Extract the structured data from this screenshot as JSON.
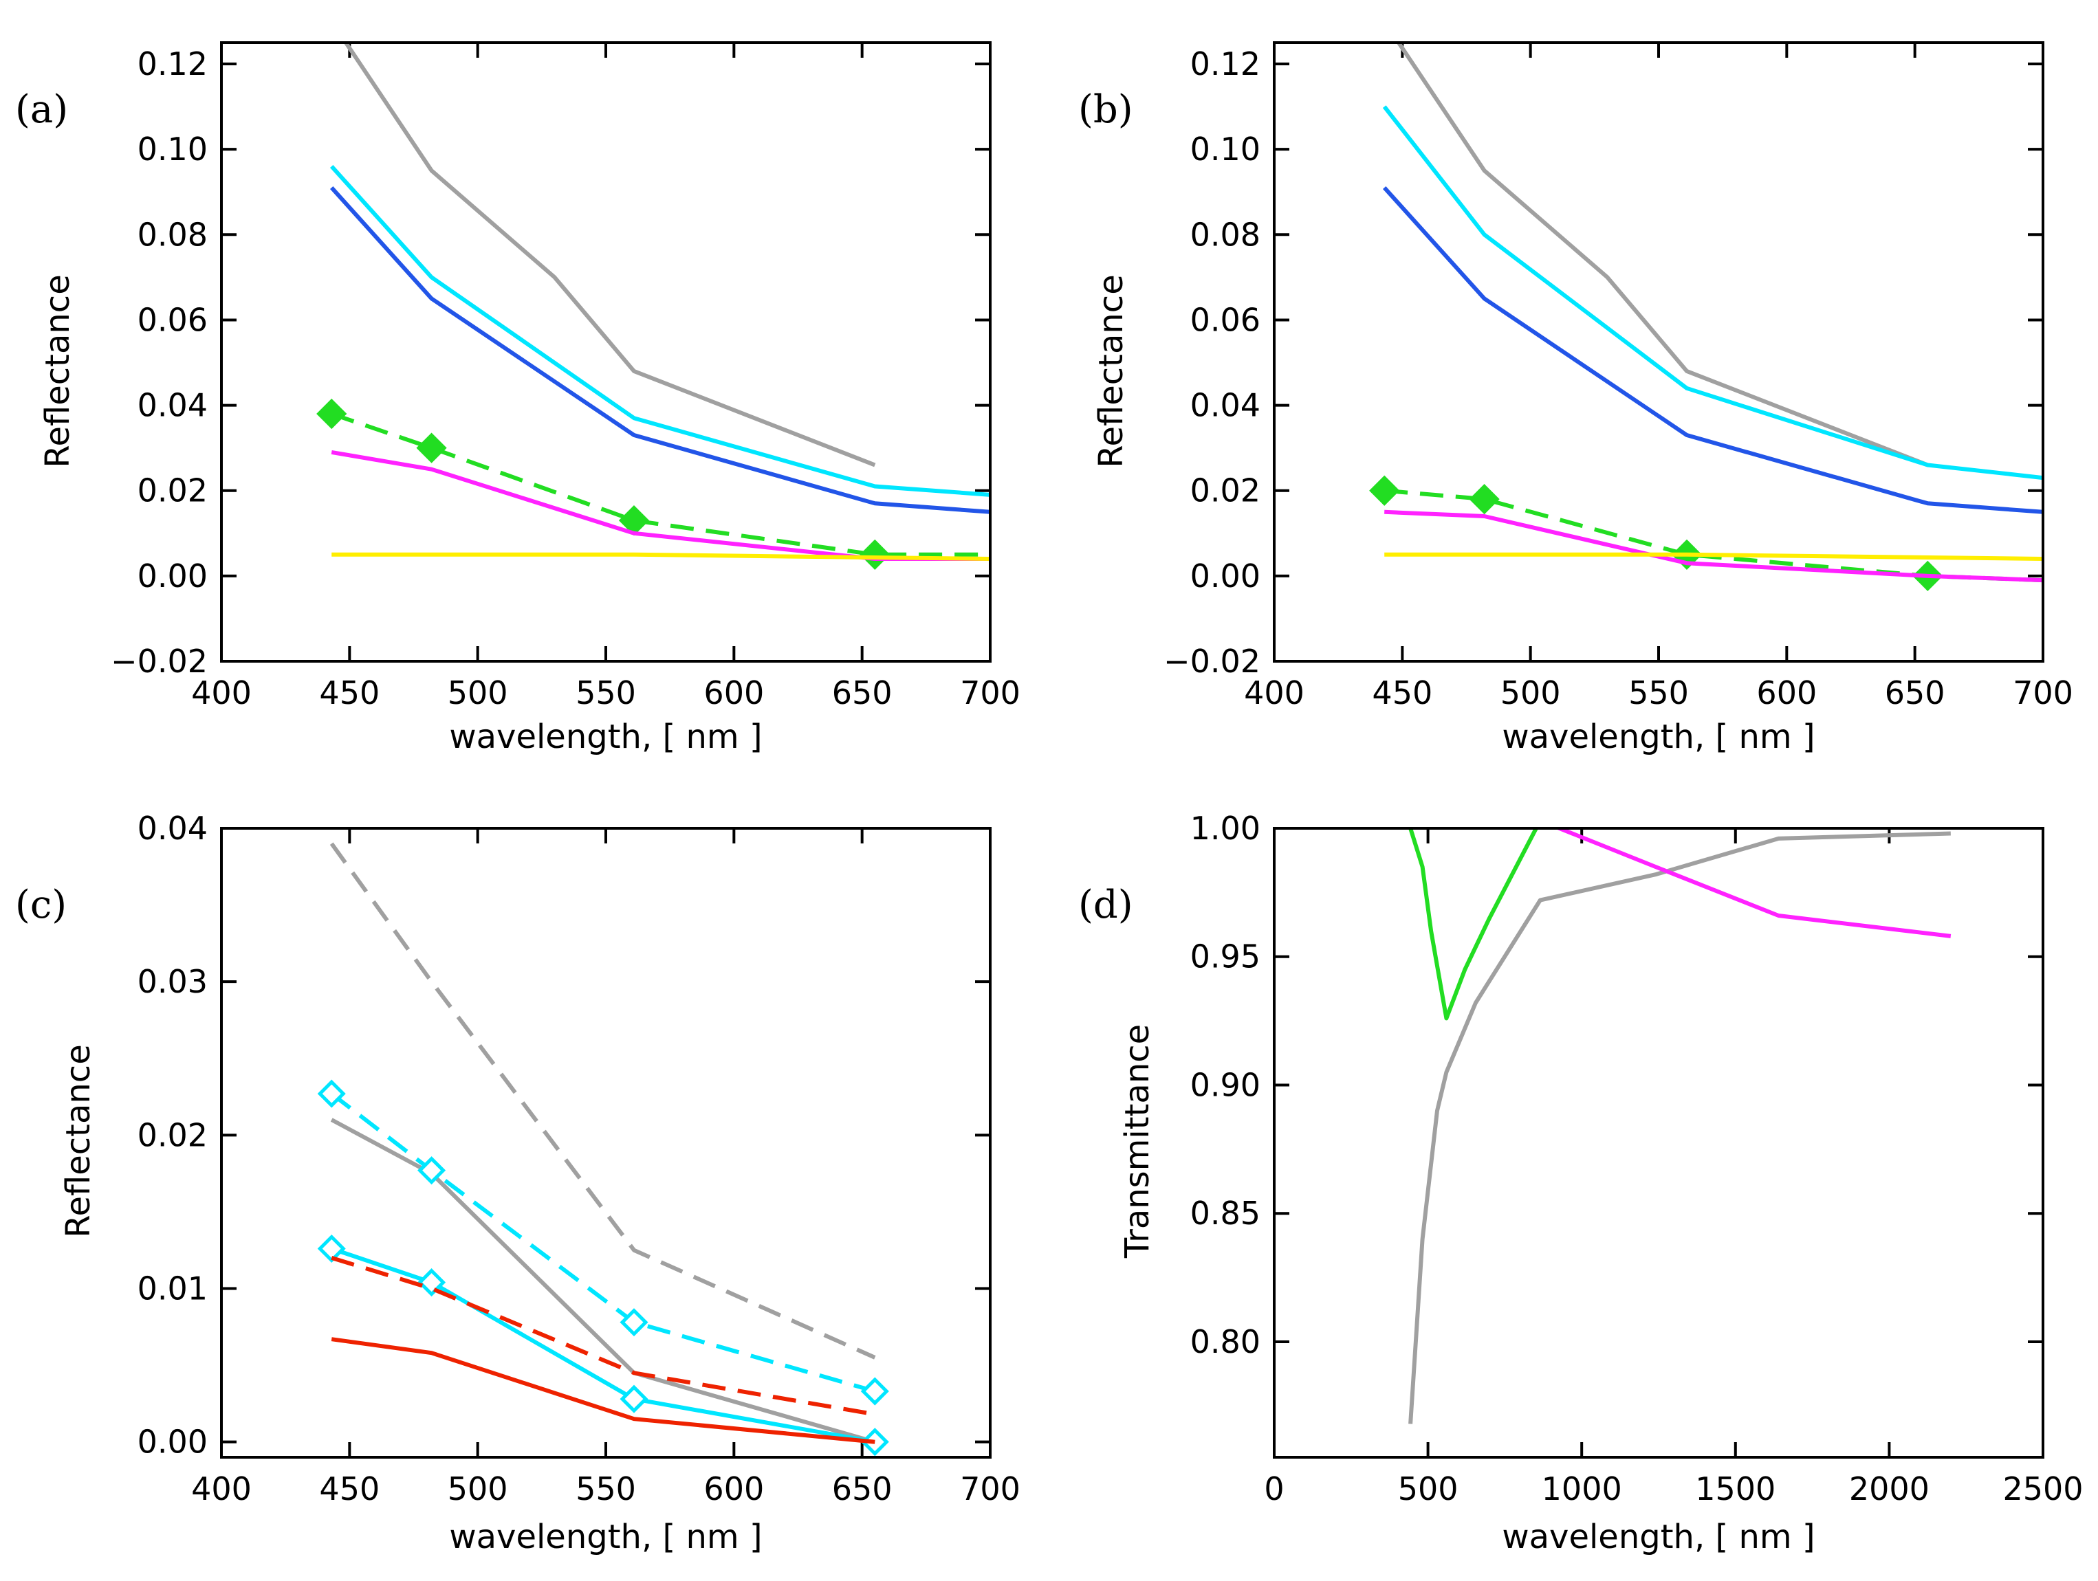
{
  "figure": {
    "panel_letters": [
      "(a)",
      "(b)",
      "(c)",
      "(d)"
    ]
  },
  "chart_data": [
    {
      "type": "line",
      "panel": "(a)",
      "xlabel": "wavelength, [ nm ]",
      "ylabel": "Reflectance",
      "xlim": [
        400,
        700
      ],
      "ylim": [
        -0.02,
        0.125
      ],
      "xticks": [
        400,
        450,
        500,
        550,
        600,
        650,
        700
      ],
      "xtick_labels": [
        "400",
        "450",
        "500",
        "550",
        "600",
        "650",
        "700"
      ],
      "yticks": [
        -0.02,
        0,
        0.02,
        0.04,
        0.06,
        0.08,
        0.1,
        0.12
      ],
      "ytick_labels": [
        "−0.02",
        "0.00",
        "0.02",
        "0.04",
        "0.06",
        "0.08",
        "0.10",
        "0.12"
      ],
      "grid": false,
      "series": [
        {
          "name": "gray",
          "color": "#a0a0a0",
          "dash": false,
          "markers": false,
          "x": [
            443,
            482,
            530,
            561,
            655
          ],
          "y": [
            0.13,
            0.095,
            0.07,
            0.048,
            0.026
          ]
        },
        {
          "name": "cyan",
          "color": "#00e6ff",
          "dash": false,
          "markers": false,
          "x": [
            443,
            482,
            561,
            655,
            700
          ],
          "y": [
            0.096,
            0.07,
            0.037,
            0.021,
            0.019
          ]
        },
        {
          "name": "blue",
          "color": "#2255e8",
          "dash": false,
          "markers": false,
          "x": [
            443,
            482,
            561,
            655,
            700
          ],
          "y": [
            0.091,
            0.065,
            0.033,
            0.017,
            0.015
          ]
        },
        {
          "name": "green",
          "color": "#22dd22",
          "dash": true,
          "markers": "filled-diamond",
          "x": [
            443,
            482,
            561,
            655,
            700
          ],
          "y": [
            0.038,
            0.03,
            0.013,
            0.005,
            0.005
          ]
        },
        {
          "name": "magenta",
          "color": "#ff22ff",
          "dash": false,
          "markers": false,
          "x": [
            443,
            482,
            561,
            655,
            700
          ],
          "y": [
            0.029,
            0.025,
            0.01,
            0.004,
            0.004
          ]
        },
        {
          "name": "yellow",
          "color": "#ffee00",
          "dash": false,
          "markers": false,
          "x": [
            443,
            561,
            700
          ],
          "y": [
            0.005,
            0.005,
            0.004
          ]
        }
      ]
    },
    {
      "type": "line",
      "panel": "(b)",
      "xlabel": "wavelength, [ nm ]",
      "ylabel": "Reflectance",
      "xlim": [
        400,
        700
      ],
      "ylim": [
        -0.02,
        0.125
      ],
      "xticks": [
        400,
        450,
        500,
        550,
        600,
        650,
        700
      ],
      "xtick_labels": [
        "400",
        "450",
        "500",
        "550",
        "600",
        "650",
        "700"
      ],
      "yticks": [
        -0.02,
        0,
        0.02,
        0.04,
        0.06,
        0.08,
        0.1,
        0.12
      ],
      "ytick_labels": [
        "−0.02",
        "0.00",
        "0.02",
        "0.04",
        "0.06",
        "0.08",
        "0.10",
        "0.12"
      ],
      "grid": false,
      "series": [
        {
          "name": "gray",
          "color": "#a0a0a0",
          "dash": false,
          "markers": false,
          "x": [
            443,
            482,
            530,
            561,
            655
          ],
          "y": [
            0.13,
            0.095,
            0.07,
            0.048,
            0.026
          ]
        },
        {
          "name": "cyan",
          "color": "#00e6ff",
          "dash": false,
          "markers": false,
          "x": [
            443,
            482,
            561,
            655,
            700
          ],
          "y": [
            0.11,
            0.08,
            0.044,
            0.026,
            0.023
          ]
        },
        {
          "name": "blue",
          "color": "#2255e8",
          "dash": false,
          "markers": false,
          "x": [
            443,
            482,
            561,
            655,
            700
          ],
          "y": [
            0.091,
            0.065,
            0.033,
            0.017,
            0.015
          ]
        },
        {
          "name": "green",
          "color": "#22dd22",
          "dash": true,
          "markers": "filled-diamond",
          "x": [
            443,
            482,
            561,
            655,
            700
          ],
          "y": [
            0.02,
            0.018,
            0.005,
            0.0,
            -0.001
          ]
        },
        {
          "name": "magenta",
          "color": "#ff22ff",
          "dash": false,
          "markers": false,
          "x": [
            443,
            482,
            561,
            655,
            700
          ],
          "y": [
            0.015,
            0.014,
            0.003,
            0.0,
            -0.001
          ]
        },
        {
          "name": "yellow",
          "color": "#ffee00",
          "dash": false,
          "markers": false,
          "x": [
            443,
            561,
            700
          ],
          "y": [
            0.005,
            0.005,
            0.004
          ]
        }
      ]
    },
    {
      "type": "line",
      "panel": "(c)",
      "xlabel": "wavelength, [ nm ]",
      "ylabel": "Reflectance",
      "xlim": [
        400,
        700
      ],
      "ylim": [
        -0.001,
        0.04
      ],
      "xticks": [
        400,
        450,
        500,
        550,
        600,
        650,
        700
      ],
      "xtick_labels": [
        "400",
        "450",
        "500",
        "550",
        "600",
        "650",
        "700"
      ],
      "yticks": [
        0,
        0.01,
        0.02,
        0.03,
        0.04
      ],
      "ytick_labels": [
        "0.00",
        "0.01",
        "0.02",
        "0.03",
        "0.04"
      ],
      "grid": false,
      "series": [
        {
          "name": "gray dashed",
          "color": "#a0a0a0",
          "dash": true,
          "markers": false,
          "x": [
            443,
            482,
            561,
            655
          ],
          "y": [
            0.039,
            0.03,
            0.0125,
            0.0055
          ]
        },
        {
          "name": "gray",
          "color": "#a0a0a0",
          "dash": false,
          "markers": false,
          "x": [
            443,
            482,
            561,
            655
          ],
          "y": [
            0.021,
            0.0175,
            0.0045,
            0.0
          ]
        },
        {
          "name": "cyan dashed",
          "color": "#00e6ff",
          "dash": true,
          "markers": "open-diamond",
          "x": [
            443,
            482,
            561,
            655
          ],
          "y": [
            0.0227,
            0.0177,
            0.0078,
            0.0033
          ]
        },
        {
          "name": "cyan",
          "color": "#00e6ff",
          "dash": false,
          "markers": "open-diamond",
          "x": [
            443,
            482,
            561,
            655
          ],
          "y": [
            0.0126,
            0.0104,
            0.0028,
            0.0
          ]
        },
        {
          "name": "red dashed",
          "color": "#ee2200",
          "dash": true,
          "markers": false,
          "x": [
            443,
            482,
            561,
            655
          ],
          "y": [
            0.012,
            0.01,
            0.0045,
            0.0018
          ]
        },
        {
          "name": "red",
          "color": "#ee2200",
          "dash": false,
          "markers": false,
          "x": [
            443,
            482,
            561,
            655
          ],
          "y": [
            0.0067,
            0.0058,
            0.0015,
            0.0
          ]
        }
      ]
    },
    {
      "type": "line",
      "panel": "(d)",
      "xlabel": "wavelength, [ nm ]",
      "ylabel": "Transmittance",
      "xlim": [
        0,
        2500
      ],
      "ylim": [
        0.755,
        1.0
      ],
      "xticks": [
        0,
        500,
        1000,
        1500,
        2000,
        2500
      ],
      "xtick_labels": [
        "0",
        "500",
        "1000",
        "1500",
        "2000",
        "2500"
      ],
      "yticks": [
        0.8,
        0.85,
        0.9,
        0.95,
        1.0
      ],
      "ytick_labels": [
        "0.80",
        "0.85",
        "0.90",
        "0.95",
        "1.00"
      ],
      "grid": false,
      "series": [
        {
          "name": "green",
          "color": "#22dd22",
          "dash": false,
          "markers": false,
          "x": [
            410,
            443,
            482,
            510,
            560,
            620,
            700,
            865,
            2200
          ],
          "y": [
            1.003,
            1.0,
            0.985,
            0.96,
            0.926,
            0.945,
            0.965,
            1.003,
            1.003
          ]
        },
        {
          "name": "gray",
          "color": "#a0a0a0",
          "dash": false,
          "markers": false,
          "x": [
            443,
            482,
            530,
            560,
            655,
            865,
            1240,
            1640,
            2200
          ],
          "y": [
            0.768,
            0.84,
            0.89,
            0.905,
            0.932,
            0.972,
            0.982,
            0.996,
            0.998
          ]
        },
        {
          "name": "magenta",
          "color": "#ff22ff",
          "dash": false,
          "markers": false,
          "x": [
            443,
            865,
            1240,
            1640,
            2200
          ],
          "y": [
            1.003,
            1.003,
            0.985,
            0.966,
            0.958
          ]
        }
      ]
    }
  ]
}
